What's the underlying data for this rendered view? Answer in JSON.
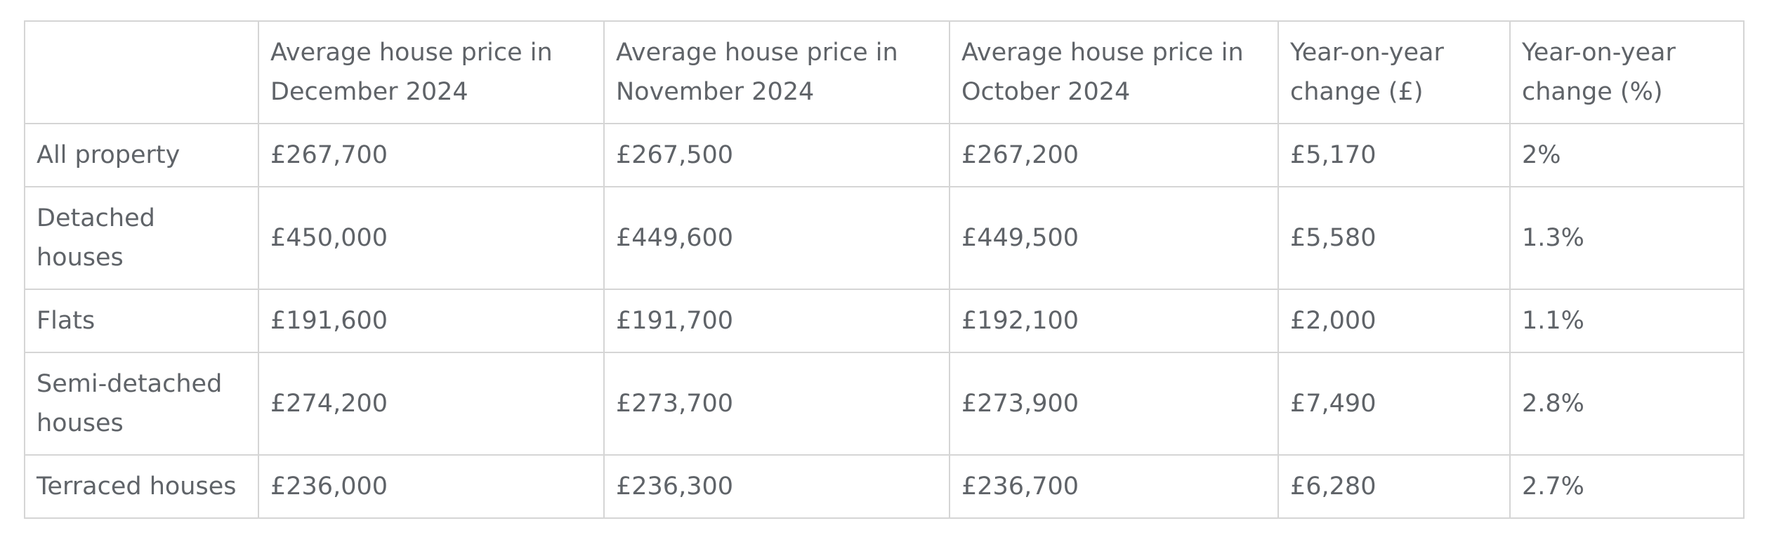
{
  "table": {
    "headers": [
      "",
      "Average house price in December 2024",
      "Average house price in November 2024",
      "Average house price in October 2024",
      "Year-on-year change (£)",
      "Year-on-year change (%)"
    ],
    "rows": [
      [
        "All property",
        "£267,700",
        "£267,500",
        "£267,200",
        "£5,170",
        "2%"
      ],
      [
        "Detached houses",
        "£450,000",
        "£449,600",
        "£449,500",
        "£5,580",
        "1.3%"
      ],
      [
        "Flats",
        "£191,600",
        "£191,700",
        "£192,100",
        "£2,000",
        "1.1%"
      ],
      [
        "Semi-detached houses",
        "£274,200",
        "£273,700",
        "£273,900",
        "£7,490",
        "2.8%"
      ],
      [
        "Terraced houses",
        "£236,000",
        "£236,300",
        "£236,700",
        "£6,280",
        "2.7%"
      ]
    ]
  }
}
